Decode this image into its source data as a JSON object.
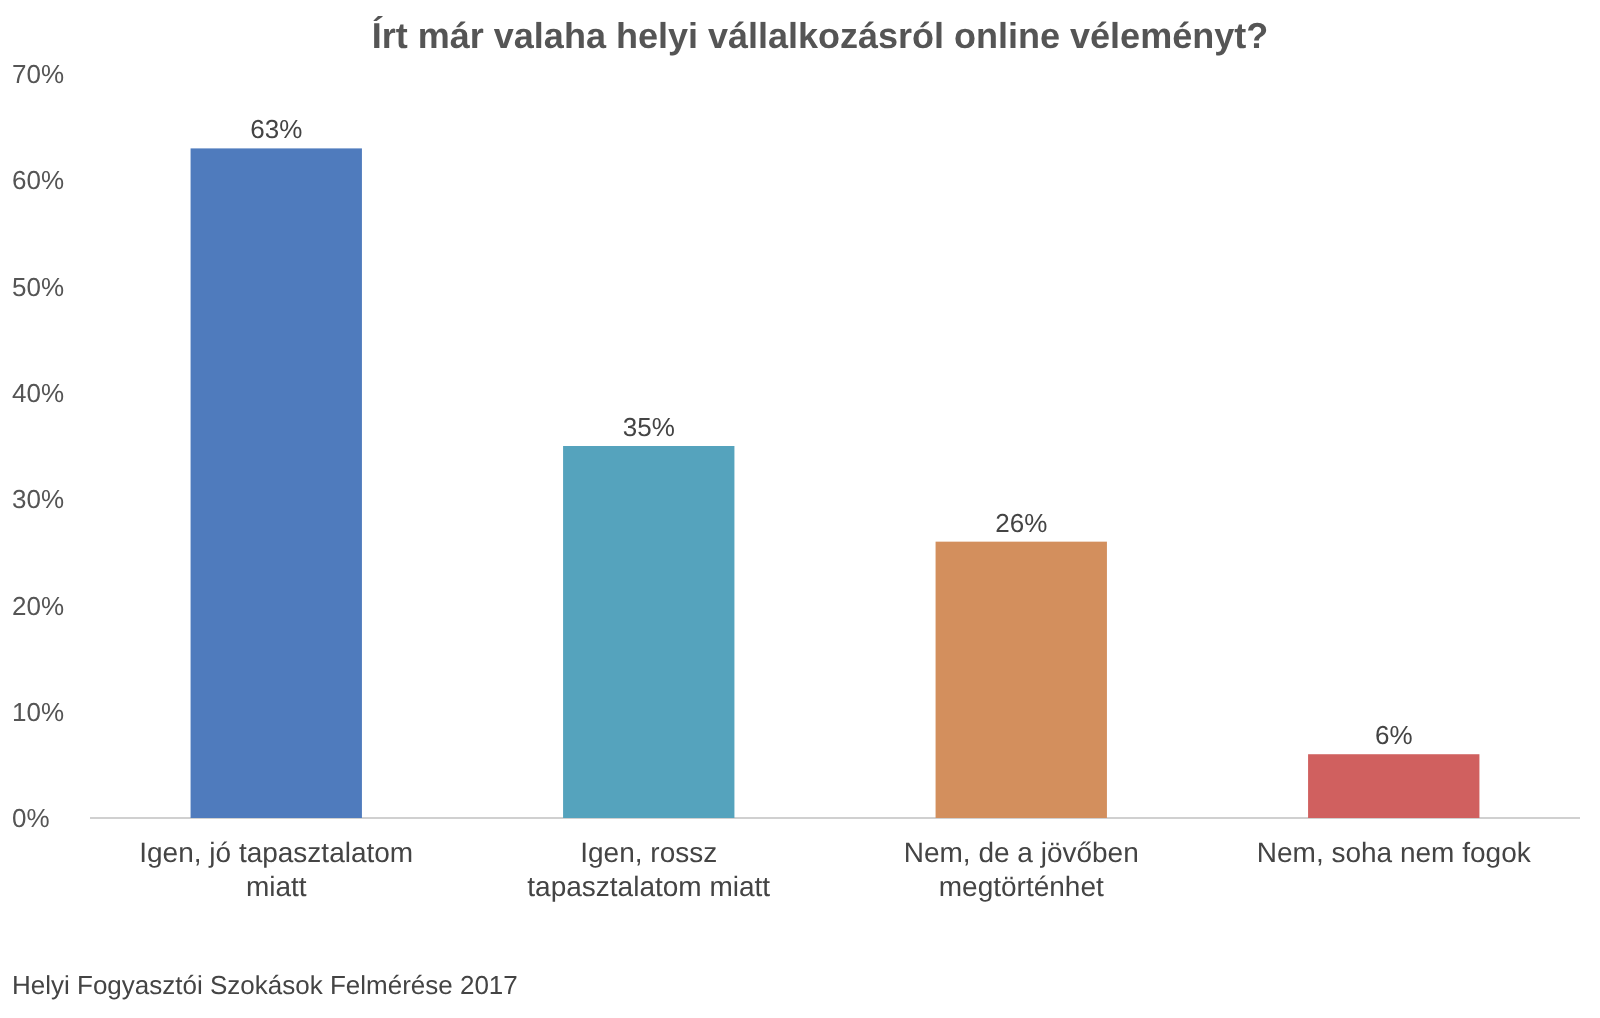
{
  "chart_data": {
    "type": "bar",
    "title": "Írt már valaha helyi vállalkozásról online véleményt?",
    "categories": [
      "Igen, jó tapasztalatom miatt",
      "Igen, rossz tapasztalatom miatt",
      "Nem, de a jövőben megtörténhet",
      "Nem, soha nem fogok"
    ],
    "values": [
      63,
      35,
      26,
      6
    ],
    "colors": [
      "#4f7bbd",
      "#55a3bd",
      "#d38f5d",
      "#d0605f"
    ],
    "value_labels": [
      "63%",
      "35%",
      "26%",
      "6%"
    ],
    "ylim": [
      0,
      70
    ],
    "yticks": [
      {
        "value": 0,
        "label": "0%"
      },
      {
        "value": 10,
        "label": "10%"
      },
      {
        "value": 20,
        "label": "20%"
      },
      {
        "value": 30,
        "label": "30%"
      },
      {
        "value": 40,
        "label": "40%"
      },
      {
        "value": 50,
        "label": "50%"
      },
      {
        "value": 60,
        "label": "60%"
      },
      {
        "value": 70,
        "label": "70%"
      }
    ],
    "grid": false,
    "annotations": [
      "Helyi Fogyasztói Szokások Felmérése 2017"
    ]
  }
}
